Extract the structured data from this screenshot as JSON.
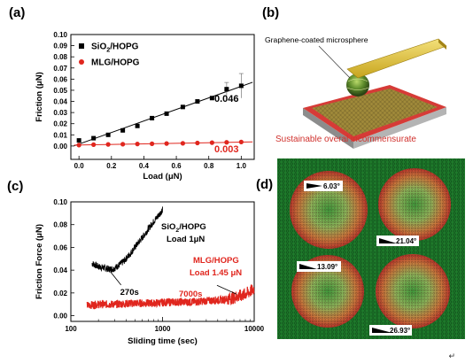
{
  "panel_labels": {
    "a": "(a)",
    "b": "(b)",
    "c": "(c)",
    "d": "(d)"
  },
  "panel_b": {
    "callout": "Graphene-coated microsphere",
    "caption": "Sustainable overal incommensurate",
    "caption_color": "#d0312d"
  },
  "panel_d": {
    "angles": [
      "6.03°",
      "21.04°",
      "13.09°",
      "26.93°"
    ],
    "background": "#1f7a2c"
  },
  "return_symbol": "↵",
  "chart_data": [
    {
      "type": "scatter",
      "panel": "a",
      "xlabel": "Load (μN)",
      "ylabel": "Friction (μN)",
      "xlim": [
        -0.05,
        1.08
      ],
      "ylim": [
        -0.012,
        0.1
      ],
      "xticks": [
        "0.0",
        "0.2",
        "0.4",
        "0.6",
        "0.8",
        "1.0"
      ],
      "yticks": [
        "0.00",
        "0.01",
        "0.02",
        "0.03",
        "0.04",
        "0.05",
        "0.06",
        "0.07",
        "0.08",
        "0.09",
        "0.10"
      ],
      "legend_position": "top-left",
      "series": [
        {
          "name": "SiO2/HOPG",
          "color": "#000000",
          "marker": "square",
          "x": [
            0.0,
            0.09,
            0.18,
            0.27,
            0.36,
            0.45,
            0.54,
            0.64,
            0.73,
            0.82,
            0.91,
            1.0
          ],
          "y": [
            0.005,
            0.007,
            0.01,
            0.014,
            0.018,
            0.025,
            0.029,
            0.035,
            0.04,
            0.043,
            0.051,
            0.054
          ],
          "error_bars": [
            0,
            0,
            0,
            0,
            0,
            0,
            0,
            0,
            0,
            0,
            0.006,
            0.011
          ],
          "fit_slope_label": "0.046"
        },
        {
          "name": "MLG/HOPG",
          "color": "#e0261e",
          "marker": "circle",
          "x": [
            0.0,
            0.09,
            0.18,
            0.27,
            0.36,
            0.45,
            0.54,
            0.64,
            0.73,
            0.82,
            0.91,
            1.0
          ],
          "y": [
            0.0008,
            0.0012,
            0.0014,
            0.0016,
            0.0018,
            0.002,
            0.0022,
            0.0024,
            0.0027,
            0.003,
            0.0033,
            0.0036
          ],
          "fit_slope_label": "0.003"
        }
      ]
    },
    {
      "type": "line",
      "panel": "c",
      "xlabel": "Sliding time (sec)",
      "ylabel": "Friction Force (μN)",
      "xscale": "log",
      "xlim": [
        100,
        10000
      ],
      "ylim": [
        -0.005,
        0.1
      ],
      "xticks": [
        "100",
        "1000",
        "10000"
      ],
      "yticks": [
        "0.00",
        "0.02",
        "0.04",
        "0.06",
        "0.08",
        "0.10"
      ],
      "series": [
        {
          "name": "SiO2/HOPG Load 1μN",
          "color": "#000000",
          "x": [
            170,
            200,
            230,
            260,
            290,
            330,
            380,
            440,
            520,
            620,
            740,
            880,
            1000
          ],
          "y": [
            0.046,
            0.043,
            0.042,
            0.041,
            0.041,
            0.044,
            0.048,
            0.054,
            0.062,
            0.07,
            0.079,
            0.087,
            0.093
          ],
          "annotation": "270s",
          "annotation_x": 270
        },
        {
          "name": "MLG/HOPG Load 1.45 μN",
          "color": "#e0261e",
          "x": [
            150,
            200,
            300,
            500,
            800,
            1200,
            2000,
            3000,
            4500,
            6000,
            7500,
            9000,
            10000
          ],
          "y": [
            0.009,
            0.01,
            0.01,
            0.011,
            0.011,
            0.012,
            0.012,
            0.013,
            0.014,
            0.016,
            0.018,
            0.021,
            0.024
          ],
          "annotation": "7000s",
          "annotation_x": 7000
        }
      ]
    }
  ]
}
